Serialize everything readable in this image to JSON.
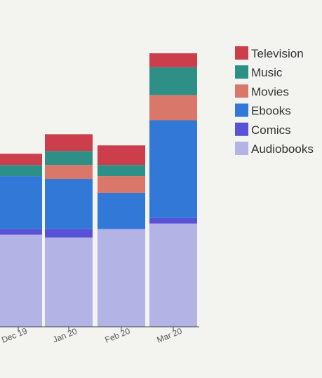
{
  "chart_data": {
    "type": "bar",
    "stacked": true,
    "orientation": "vertical",
    "categories": [
      "Dec 19",
      "Jan 20",
      "Feb 20",
      "Mar 20"
    ],
    "ylim": [
      0,
      100
    ],
    "grid": false,
    "legend_position": "right",
    "series": [
      {
        "name": "Audiobooks",
        "color": "#b3b3e6",
        "values": [
          33,
          32,
          35,
          37
        ]
      },
      {
        "name": "Comics",
        "color": "#5a52d6",
        "values": [
          2,
          3,
          0,
          2
        ]
      },
      {
        "name": "Ebooks",
        "color": "#3278d6",
        "values": [
          19,
          18,
          13,
          35
        ]
      },
      {
        "name": "Movies",
        "color": "#d9786a",
        "values": [
          0,
          5,
          6,
          9
        ]
      },
      {
        "name": "Music",
        "color": "#2e8f86",
        "values": [
          4,
          5,
          4,
          10
        ]
      },
      {
        "name": "Television",
        "color": "#cc3e4c",
        "values": [
          4,
          6,
          7,
          5
        ]
      }
    ],
    "legend_order": [
      "Television",
      "Music",
      "Movies",
      "Ebooks",
      "Comics",
      "Audiobooks"
    ],
    "title": "",
    "xlabel": "",
    "ylabel": ""
  }
}
